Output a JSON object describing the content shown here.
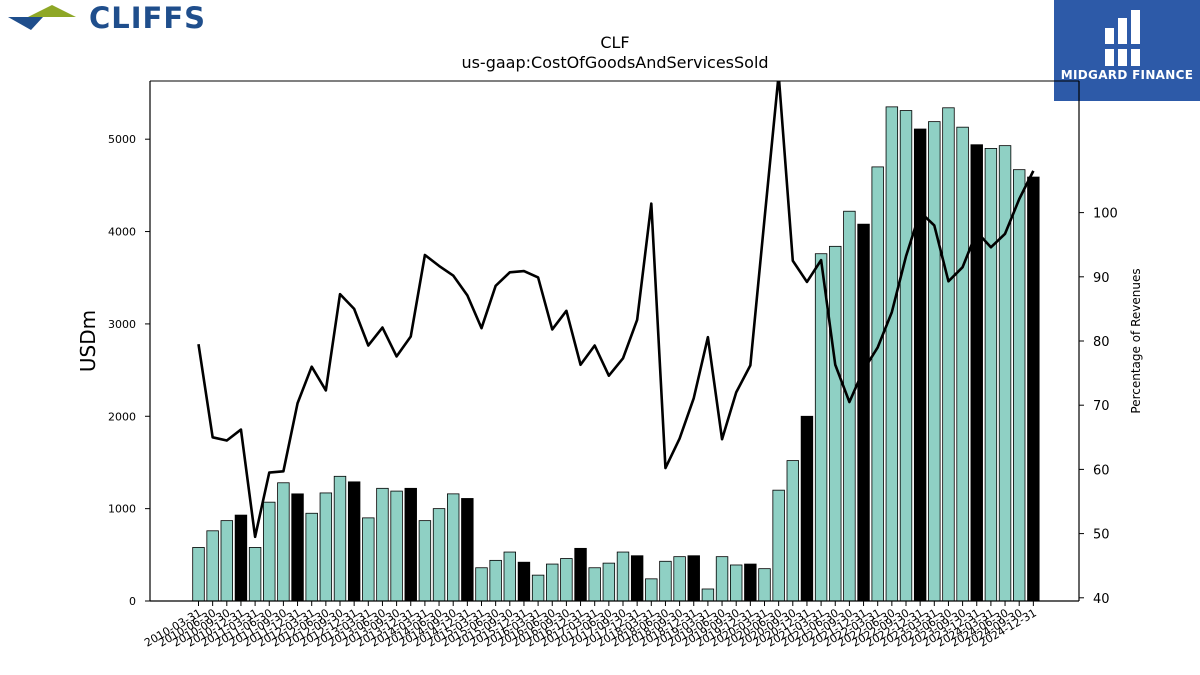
{
  "logos": {
    "left_brand": "CLIFFS",
    "right_brand": "MIDGARD FINANCE"
  },
  "chart_data": {
    "type": "bar",
    "title": "CLF",
    "subtitle": "us-gaap:CostOfGoodsAndServicesSold",
    "ylabel": "USDm",
    "y2label": "Percentage of Revenues",
    "ylim": [
      0,
      5630
    ],
    "y2lim": [
      39.5,
      120.5
    ],
    "yticks": [
      0,
      1000,
      2000,
      3000,
      4000,
      5000
    ],
    "y2ticks": [
      40,
      50,
      60,
      70,
      80,
      90,
      100
    ],
    "colors": {
      "quarter_bar": "#8fd0c4",
      "annual_bar": "#000000",
      "line": "#000000"
    },
    "categories": [
      "2010-03-31",
      "2010-06-30",
      "2010-09-30",
      "2010-12-31",
      "2011-03-31",
      "2011-06-30",
      "2011-09-30",
      "2011-12-31",
      "2012-03-31",
      "2012-06-30",
      "2012-09-30",
      "2012-12-31",
      "2013-03-31",
      "2013-06-30",
      "2013-09-30",
      "2013-12-31",
      "2014-03-31",
      "2014-06-30",
      "2014-09-30",
      "2014-12-31",
      "2015-03-31",
      "2015-06-30",
      "2015-09-30",
      "2015-12-31",
      "2016-03-31",
      "2016-06-30",
      "2016-09-30",
      "2016-12-31",
      "2017-03-31",
      "2017-06-30",
      "2017-09-30",
      "2017-12-31",
      "2018-03-31",
      "2018-06-30",
      "2018-09-30",
      "2018-12-31",
      "2019-03-31",
      "2019-06-30",
      "2019-09-30",
      "2019-12-31",
      "2020-03-31",
      "2020-06-30",
      "2020-09-30",
      "2020-12-31",
      "2021-03-31",
      "2021-06-30",
      "2021-09-30",
      "2021-12-31",
      "2022-03-31",
      "2022-06-30",
      "2022-09-30",
      "2022-12-31",
      "2023-03-31",
      "2023-06-30",
      "2023-09-30",
      "2023-12-31",
      "2024-03-31",
      "2024-06-30",
      "2024-09-30",
      "2024-12-31"
    ],
    "series": [
      {
        "values": [
          580,
          760,
          870,
          930,
          580,
          1070,
          1280,
          1160,
          950,
          1170,
          1350,
          1290,
          900,
          1220,
          1190,
          1220,
          870,
          1000,
          1160,
          1110,
          360,
          440,
          530,
          420,
          280,
          400,
          460,
          570,
          360,
          410,
          530,
          490,
          240,
          430,
          480,
          490,
          130,
          480,
          390,
          400,
          350,
          1200,
          1520,
          2000,
          3760,
          3840,
          4220,
          4080,
          4700,
          5350,
          5310,
          5110,
          5190,
          5340,
          5130,
          4940,
          4900,
          4930,
          4670,
          4590
        ],
        "annual": [
          false,
          false,
          false,
          true,
          false,
          false,
          false,
          true,
          false,
          false,
          false,
          true,
          false,
          false,
          false,
          true,
          false,
          false,
          false,
          true,
          false,
          false,
          false,
          true,
          false,
          false,
          false,
          true,
          false,
          false,
          false,
          true,
          false,
          false,
          false,
          true,
          false,
          false,
          false,
          true,
          false,
          false,
          false,
          true,
          false,
          false,
          false,
          true,
          false,
          false,
          false,
          true,
          false,
          false,
          false,
          true,
          false,
          false,
          false,
          true
        ]
      },
      {
        "axis": "right",
        "values": [
          79.5,
          65,
          64.5,
          66.2,
          49.5,
          59.5,
          59.7,
          70.3,
          76,
          72.3,
          87.3,
          85,
          79.3,
          82.1,
          77.6,
          80.7,
          93.4,
          91.7,
          90.2,
          87.1,
          82,
          88.6,
          90.7,
          90.9,
          89.9,
          81.8,
          84.7,
          76.3,
          79.3,
          74.6,
          77.3,
          83.3,
          101.4,
          60.2,
          64.8,
          71.1,
          80.6,
          64.7,
          72,
          76.2,
          99,
          121.5,
          92.5,
          89.2,
          92.6,
          76.3,
          70.5,
          75.5,
          79,
          84.5,
          93.2,
          100.1,
          98,
          89.3,
          91.5,
          97,
          94.6,
          96.7,
          102.1,
          106.5
        ]
      }
    ],
    "grid": false,
    "legend": "none"
  }
}
